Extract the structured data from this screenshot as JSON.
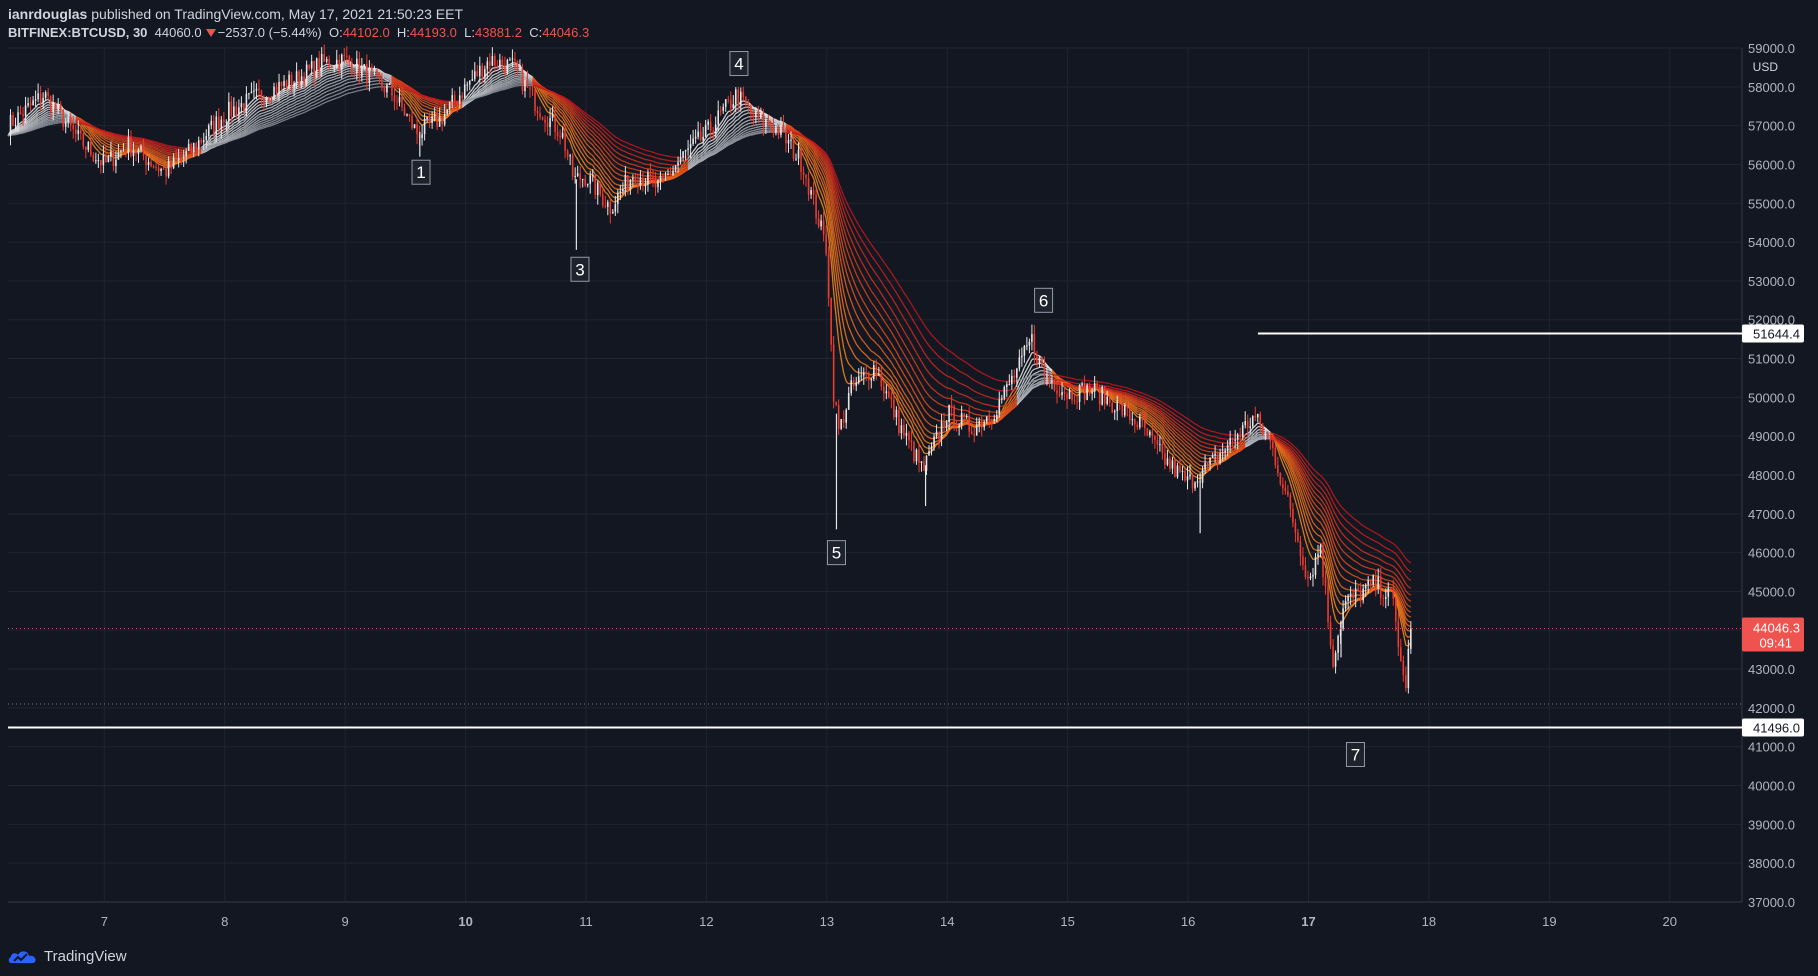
{
  "header": {
    "author": "ianrdouglas",
    "published": "published on TradingView.com, May 17, 2021 21:50:23 EET",
    "symbol": "BITFINEX:BTCUSD, 30",
    "last": "44060.0",
    "change": "−2537.0 (−5.44%)",
    "open_label": "O:",
    "open": "44102.0",
    "high_label": "H:",
    "high": "44193.0",
    "low_label": "L:",
    "low": "43881.2",
    "close_label": "C:",
    "close": "44046.3"
  },
  "footer": {
    "brand": "TradingView"
  },
  "colors": {
    "background": "#131722",
    "grid": "#1f2430",
    "bull": "#e6e6e6",
    "bear": "#ef3b2c",
    "ribbon_warm": "#ff8c1a",
    "ribbon_hot": "#c4171d",
    "ribbon_cool": "#8a8f99",
    "price_label": "#ef5350"
  },
  "chart_data": {
    "type": "line",
    "title": "",
    "currency": "USD",
    "ylim": [
      37000,
      59000
    ],
    "y_ticks": [
      37000,
      38000,
      39000,
      40000,
      41000,
      42000,
      43000,
      44000,
      45000,
      46000,
      47000,
      48000,
      49000,
      50000,
      51000,
      52000,
      53000,
      54000,
      55000,
      56000,
      57000,
      58000,
      59000
    ],
    "y_tick_labels": [
      "37000.0",
      "38000.0",
      "39000.0",
      "40000.0",
      "41000.0",
      "42000.0",
      "43000.0",
      "44000.0",
      "45000.0",
      "46000.0",
      "47000.0",
      "48000.0",
      "49000.0",
      "50000.0",
      "51000.0",
      "52000.0",
      "53000.0",
      "54000.0",
      "55000.0",
      "56000.0",
      "57000.0",
      "58000.0",
      "59000.0"
    ],
    "x_ticks": [
      7,
      8,
      9,
      10,
      11,
      12,
      13,
      14,
      15,
      16,
      17,
      18,
      19,
      20
    ],
    "x_bold": [
      10,
      17
    ],
    "xlim": [
      6.2,
      20.6
    ],
    "series": [
      {
        "values_note_units": "price USD vs day of May 2021",
        "x": [
          6.2,
          6.5,
          6.8,
          7.0,
          7.2,
          7.5,
          7.7,
          8.0,
          8.3,
          8.6,
          8.8,
          9.0,
          9.2,
          9.4,
          9.6,
          9.8,
          10.0,
          10.2,
          10.4,
          10.6,
          10.8,
          10.9,
          11.0,
          11.2,
          11.4,
          11.6,
          11.8,
          12.0,
          12.25,
          12.4,
          12.6,
          12.8,
          13.0,
          13.05,
          13.1,
          13.2,
          13.4,
          13.6,
          13.8,
          14.0,
          14.2,
          14.4,
          14.6,
          14.7,
          14.8,
          15.0,
          15.2,
          15.4,
          15.6,
          15.8,
          16.0,
          16.2,
          16.4,
          16.55,
          16.7,
          16.9,
          17.0,
          17.1,
          17.2,
          17.3,
          17.4,
          17.55,
          17.7,
          17.8,
          17.85
        ],
        "close": [
          57000,
          57800,
          56600,
          56000,
          56500,
          55800,
          56300,
          57300,
          57800,
          58200,
          58600,
          58700,
          58300,
          57800,
          56800,
          57200,
          58000,
          58700,
          58500,
          57500,
          56800,
          55600,
          55700,
          54900,
          55800,
          55400,
          56200,
          56800,
          57800,
          57200,
          56900,
          56000,
          53800,
          50300,
          49100,
          50200,
          50800,
          49300,
          48100,
          49600,
          49200,
          49700,
          50800,
          51500,
          50600,
          50100,
          50200,
          49800,
          49300,
          48400,
          47800,
          48300,
          49000,
          49500,
          48700,
          46500,
          45300,
          46200,
          43200,
          44700,
          44900,
          45200,
          44800,
          42400,
          44046.3
        ]
      }
    ],
    "horizontal_levels": [
      {
        "price": 51644.4,
        "label": "51644.4"
      },
      {
        "price": 41496.0,
        "label": "41496.0"
      }
    ],
    "current_price": {
      "price": 44046.3,
      "label": "44046.3",
      "countdown": "09:41"
    },
    "prev_close_level": 42100,
    "annotations": [
      {
        "label": "1",
        "x": 9.63,
        "y": 55800
      },
      {
        "label": "3",
        "x": 10.95,
        "y": 53300
      },
      {
        "label": "4",
        "x": 12.27,
        "y": 58600
      },
      {
        "label": "5",
        "x": 13.08,
        "y": 46000
      },
      {
        "label": "6",
        "x": 14.8,
        "y": 52500
      },
      {
        "label": "7",
        "x": 17.39,
        "y": 40800
      }
    ]
  }
}
